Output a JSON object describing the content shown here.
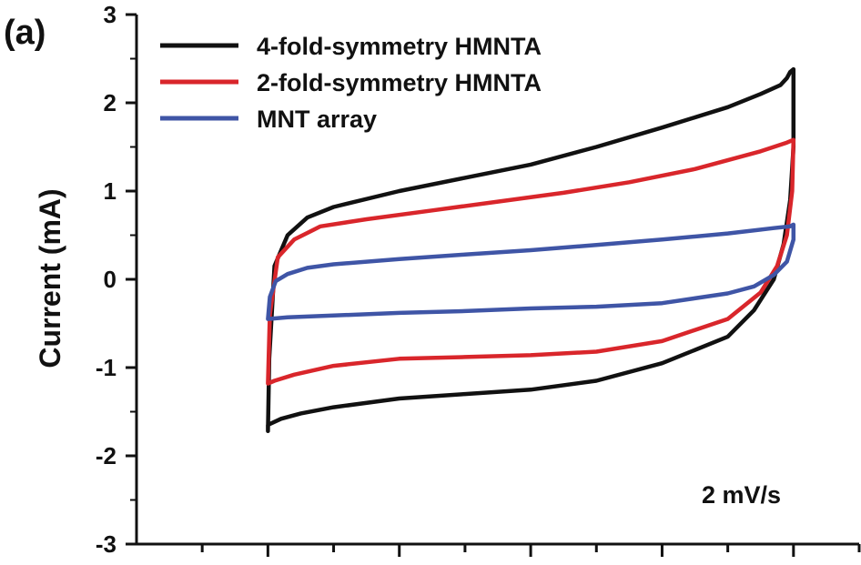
{
  "chart_data": {
    "type": "line",
    "panel_label": "(a)",
    "ylabel": "Current (mA)",
    "xlabel": "",
    "ylim": [
      -3,
      3
    ],
    "yticks": [
      "3",
      "2",
      "1",
      "0",
      "-1",
      "-2",
      "-3"
    ],
    "ytick_values": [
      3,
      2,
      1,
      0,
      -1,
      -2,
      -3
    ],
    "xlim": [
      -0.2,
      0.9
    ],
    "x_tick_values": [
      -0.1,
      0.0,
      0.1,
      0.2,
      0.3,
      0.4,
      0.5,
      0.6,
      0.7,
      0.8,
      0.9
    ],
    "x_tick_labels_visible": false,
    "annotation": "2 mV/s",
    "legend_position": "top-left",
    "grid": false,
    "series": [
      {
        "name": "4-fold-symmetry HMNTA",
        "color": "#111111",
        "x": [
          0.0,
          0.002,
          0.01,
          0.03,
          0.06,
          0.1,
          0.2,
          0.3,
          0.4,
          0.5,
          0.6,
          0.7,
          0.75,
          0.78,
          0.79,
          0.795,
          0.8,
          0.8,
          0.795,
          0.785,
          0.77,
          0.74,
          0.7,
          0.6,
          0.5,
          0.4,
          0.3,
          0.2,
          0.1,
          0.05,
          0.02,
          0.0,
          0.0
        ],
        "y": [
          -1.72,
          -0.9,
          0.15,
          0.5,
          0.7,
          0.82,
          1.0,
          1.15,
          1.3,
          1.5,
          1.72,
          1.95,
          2.1,
          2.2,
          2.28,
          2.35,
          2.38,
          1.5,
          0.9,
          0.4,
          0.0,
          -0.35,
          -0.65,
          -0.95,
          -1.15,
          -1.25,
          -1.3,
          -1.35,
          -1.45,
          -1.52,
          -1.58,
          -1.65,
          -1.72
        ]
      },
      {
        "name": "2-fold-symmetry HMNTA",
        "color": "#d9262b",
        "x": [
          0.0,
          0.003,
          0.015,
          0.04,
          0.08,
          0.15,
          0.25,
          0.35,
          0.45,
          0.55,
          0.65,
          0.75,
          0.79,
          0.8,
          0.798,
          0.79,
          0.775,
          0.75,
          0.7,
          0.6,
          0.5,
          0.4,
          0.3,
          0.2,
          0.1,
          0.04,
          0.01,
          0.0
        ],
        "y": [
          -1.18,
          -0.4,
          0.25,
          0.45,
          0.6,
          0.68,
          0.78,
          0.88,
          0.98,
          1.1,
          1.25,
          1.45,
          1.55,
          1.58,
          1.0,
          0.5,
          0.15,
          -0.15,
          -0.45,
          -0.7,
          -0.82,
          -0.86,
          -0.88,
          -0.9,
          -0.98,
          -1.08,
          -1.15,
          -1.18
        ]
      },
      {
        "name": "MNT array",
        "color": "#3f55a6",
        "x": [
          0.0,
          0.003,
          0.012,
          0.03,
          0.06,
          0.1,
          0.2,
          0.3,
          0.4,
          0.5,
          0.6,
          0.7,
          0.77,
          0.795,
          0.8,
          0.8,
          0.79,
          0.77,
          0.74,
          0.7,
          0.6,
          0.5,
          0.4,
          0.3,
          0.2,
          0.1,
          0.03,
          0.0
        ],
        "y": [
          -0.45,
          -0.2,
          -0.02,
          0.06,
          0.13,
          0.17,
          0.23,
          0.28,
          0.33,
          0.39,
          0.45,
          0.52,
          0.58,
          0.6,
          0.62,
          0.45,
          0.2,
          0.05,
          -0.08,
          -0.16,
          -0.27,
          -0.31,
          -0.33,
          -0.36,
          -0.38,
          -0.41,
          -0.43,
          -0.45
        ]
      }
    ]
  }
}
